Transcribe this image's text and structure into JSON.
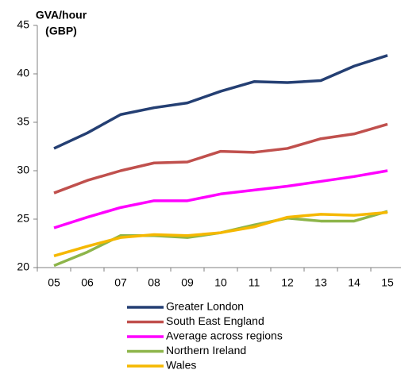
{
  "chart_data": {
    "type": "line",
    "ylabel": [
      "GVA/hour",
      "(GBP)"
    ],
    "categories": [
      "05",
      "06",
      "07",
      "08",
      "09",
      "10",
      "11",
      "12",
      "13",
      "14",
      "15"
    ],
    "series": [
      {
        "name": "Greater London",
        "color": "#243f73",
        "values": [
          32.3,
          33.9,
          35.8,
          36.5,
          37.0,
          38.2,
          39.2,
          39.1,
          39.3,
          40.8,
          41.9
        ]
      },
      {
        "name": "South East England",
        "color": "#c0504d",
        "values": [
          27.7,
          29.0,
          30.0,
          30.8,
          30.9,
          32.0,
          31.9,
          32.3,
          33.3,
          33.8,
          34.8
        ]
      },
      {
        "name": "Average across regions",
        "color": "#ff00ff",
        "values": [
          24.1,
          25.2,
          26.2,
          26.9,
          26.9,
          27.6,
          28.0,
          28.4,
          28.9,
          29.4,
          30.0
        ]
      },
      {
        "name": "Northern Ireland",
        "color": "#8db54a",
        "values": [
          20.2,
          21.6,
          23.3,
          23.3,
          23.1,
          23.6,
          24.4,
          25.1,
          24.8,
          24.8,
          25.8
        ]
      },
      {
        "name": "Wales",
        "color": "#f5b800",
        "values": [
          21.2,
          22.2,
          23.1,
          23.4,
          23.3,
          23.6,
          24.2,
          25.2,
          25.5,
          25.4,
          25.7
        ]
      }
    ],
    "ylim": [
      20,
      45
    ],
    "yticks": [
      20,
      25,
      30,
      35,
      40,
      45
    ],
    "grid": false,
    "legend": "bottom"
  }
}
